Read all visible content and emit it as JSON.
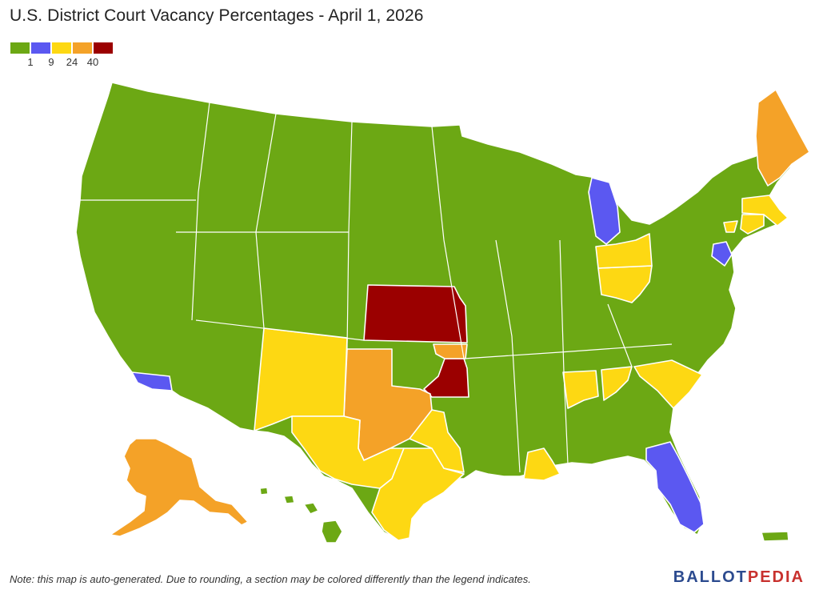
{
  "header": {
    "title": "U.S. District Court Vacancy Percentages - April 1, 2026"
  },
  "legend": {
    "colors": [
      "#6ca814",
      "#5b58f1",
      "#fdd813",
      "#f4a228",
      "#9b0000"
    ],
    "ticks": [
      "1",
      "9",
      "24",
      "40"
    ]
  },
  "footer": {
    "note": "Note: this map is auto-generated. Due to rounding, a section may be colored differently than the legend indicates.",
    "brand_part1": "BALLOT",
    "brand_part2": "PEDIA",
    "brand_colors": [
      "#2c4b8f",
      "#c8312e"
    ]
  },
  "map": {
    "colors": {
      "green": "#6ca814",
      "blue": "#5b58f1",
      "yellow": "#fdd813",
      "orange": "#f4a228",
      "red": "#9b0000",
      "border": "#ffffff"
    },
    "districts_by_color": {
      "red": [
        "Kansas",
        "Eastern Oklahoma"
      ],
      "orange": [
        "Alaska",
        "Maine",
        "Northern Texas",
        "Northern Oklahoma"
      ],
      "yellow": [
        "New Mexico",
        "Western Texas",
        "Southern Texas",
        "Eastern Texas",
        "Southern Ohio",
        "Northern Ohio",
        "Western Louisiana",
        "Northern Alabama",
        "South Carolina",
        "Massachusetts",
        "Connecticut",
        "Rhode Island",
        "Northern Georgia"
      ],
      "blue": [
        "Eastern Michigan",
        "New Jersey",
        "Central California",
        "Middle Florida"
      ]
    }
  }
}
